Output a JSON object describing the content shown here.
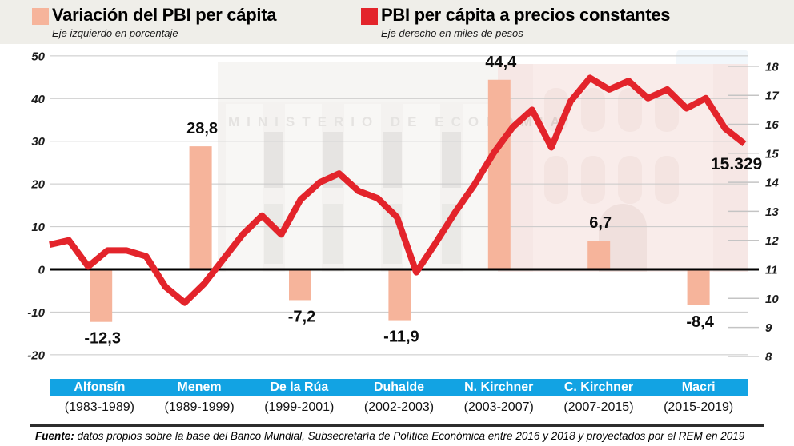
{
  "header": {
    "legend_left": {
      "swatch_color": "#F6B49B",
      "title": "Variación del PBI per cápita",
      "subtitle": "Eje izquierdo en porcentaje"
    },
    "legend_right": {
      "swatch_color": "#E3242B",
      "title": "PBI per cápita a precios constantes",
      "subtitle": "Eje derecho en miles de pesos"
    }
  },
  "chart_data": {
    "type": "bar+line",
    "title": "",
    "grid": true,
    "bar_series": {
      "name": "Variación del PBI per cápita",
      "axis": "left",
      "unit": "%",
      "color": "#F6B49B",
      "categories": [
        "Alfonsín",
        "Menem",
        "De la Rúa",
        "Duhalde",
        "N. Kirchner",
        "C. Kirchner",
        "Macri"
      ],
      "values": [
        -12.3,
        28.8,
        -7.2,
        -11.9,
        44.4,
        6.7,
        -8.4
      ],
      "labels": [
        "-12,3",
        "28,8",
        "-7,2",
        "-11,9",
        "44,4",
        "6,7",
        "-8,4"
      ]
    },
    "line_series": {
      "name": "PBI per cápita a precios constantes",
      "axis": "right",
      "unit": "miles de pesos",
      "color": "#E3242B",
      "x": [
        1983,
        1984,
        1985,
        1986,
        1987,
        1988,
        1989,
        1990,
        1991,
        1992,
        1993,
        1994,
        1995,
        1996,
        1997,
        1998,
        1999,
        2000,
        2001,
        2002,
        2003,
        2004,
        2005,
        2006,
        2007,
        2008,
        2009,
        2010,
        2011,
        2012,
        2013,
        2014,
        2015,
        2016,
        2017,
        2018,
        2019
      ],
      "values": [
        11.85,
        12.0,
        11.1,
        11.65,
        11.65,
        11.45,
        10.4,
        9.85,
        10.5,
        11.35,
        12.2,
        12.85,
        12.2,
        13.4,
        14.0,
        14.3,
        13.7,
        13.45,
        12.8,
        10.9,
        11.9,
        12.95,
        13.9,
        15.0,
        15.9,
        16.5,
        15.2,
        16.8,
        17.6,
        17.2,
        17.5,
        16.9,
        17.2,
        16.55,
        16.9,
        15.85,
        15.329
      ],
      "end_label": "15.329"
    },
    "left_axis": {
      "ticks": [
        50,
        40,
        30,
        20,
        10,
        0,
        -10,
        -20
      ],
      "min": -20,
      "max": 50
    },
    "right_axis": {
      "ticks": [
        18,
        17,
        16,
        15,
        14,
        13,
        12,
        11,
        10,
        9,
        8
      ],
      "min": 8,
      "max": 18
    }
  },
  "bands": {
    "color": "#12A3E3",
    "items": [
      {
        "president": "Alfonsín",
        "period": "(1983-1989)"
      },
      {
        "president": "Menem",
        "period": "(1989-1999)"
      },
      {
        "president": "De la Rúa",
        "period": "(1999-2001)"
      },
      {
        "president": "Duhalde",
        "period": "(2002-2003)"
      },
      {
        "president": "N. Kirchner",
        "period": "(2003-2007)"
      },
      {
        "president": "C. Kirchner",
        "period": "(2007-2015)"
      },
      {
        "president": "Macri",
        "period": "(2015-2019)"
      }
    ]
  },
  "background": {
    "left_building_text": "MINISTERIO DE ECONOMIA"
  },
  "footer": {
    "label": "Fuente:",
    "text": " datos propios sobre la base del Banco Mundial, Subsecretaría de Política Económica entre 2016 y 2018 y proyectados por el REM en 2019"
  }
}
